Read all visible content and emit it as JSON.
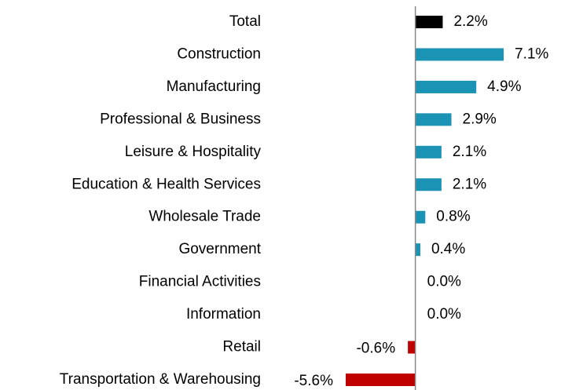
{
  "chart_data": {
    "type": "bar",
    "orientation": "horizontal",
    "categories": [
      "Total",
      "Construction",
      "Manufacturing",
      "Professional & Business",
      "Leisure & Hospitality",
      "Education & Health Services",
      "Wholesale Trade",
      "Government",
      "Financial Activities",
      "Information",
      "Retail",
      "Transportation & Warehousing"
    ],
    "values": [
      2.2,
      7.1,
      4.9,
      2.9,
      2.1,
      2.1,
      0.8,
      0.4,
      0.0,
      0.0,
      -0.6,
      -5.6
    ],
    "value_labels": [
      "2.2%",
      "7.1%",
      "4.9%",
      "2.9%",
      "2.1%",
      "2.1%",
      "0.8%",
      "0.4%",
      "0.0%",
      "0.0%",
      "-0.6%",
      "-5.6%"
    ],
    "colors": [
      "#000000",
      "#1a93b4",
      "#1a93b4",
      "#1a93b4",
      "#1a93b4",
      "#1a93b4",
      "#1a93b4",
      "#1a93b4",
      "#1a93b4",
      "#1a93b4",
      "#c00000",
      "#c00000"
    ]
  }
}
